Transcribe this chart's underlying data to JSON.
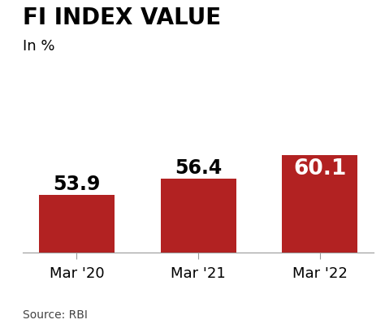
{
  "categories": [
    "Mar '20",
    "Mar '21",
    "Mar '22"
  ],
  "values": [
    53.9,
    56.4,
    60.1
  ],
  "bar_color": "#b22222",
  "title_line1": "FI INDEX VALUE",
  "title_line2": "In %",
  "value_labels": [
    "53.9",
    "56.4",
    "60.1"
  ],
  "source_text": "Source: RBI",
  "background_color": "#ffffff",
  "title_fontsize": 20,
  "subtitle_fontsize": 13,
  "value_fontsize_outside": 17,
  "value_fontsize_inside": 19,
  "xlabel_fontsize": 13,
  "source_fontsize": 10,
  "ylim_min": 45,
  "ylim_max": 65,
  "bar_width": 0.62
}
